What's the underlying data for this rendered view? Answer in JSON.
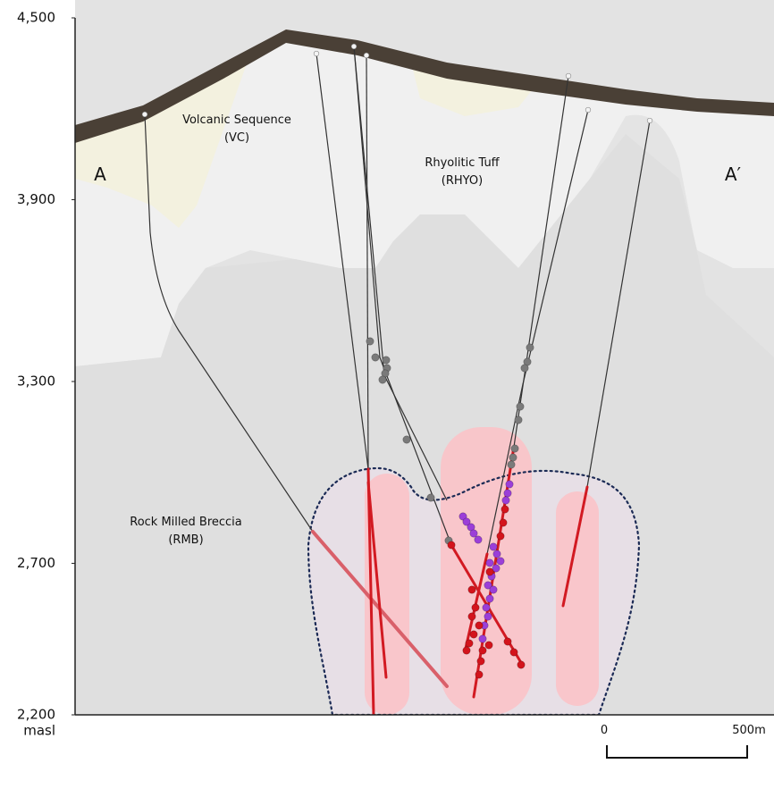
{
  "axis": {
    "ticks": [
      {
        "value": 4500,
        "label": "4,500"
      },
      {
        "value": 3900,
        "label": "3,900"
      },
      {
        "value": 3300,
        "label": "3,300"
      },
      {
        "value": 2700,
        "label": "2,700"
      },
      {
        "value": 2200,
        "label": "2,200"
      }
    ],
    "unit": "masl"
  },
  "section": {
    "start": "A",
    "end": "A′"
  },
  "units": [
    {
      "name": "Volcanic Sequence",
      "code": "(VC)"
    },
    {
      "name": "Rhyolitic Tuff",
      "code": "(RHYO)"
    },
    {
      "name": "Rock Milled Breccia",
      "code": "(RMB)"
    }
  ],
  "scale_bar": {
    "start": "0",
    "end": "500m"
  }
}
